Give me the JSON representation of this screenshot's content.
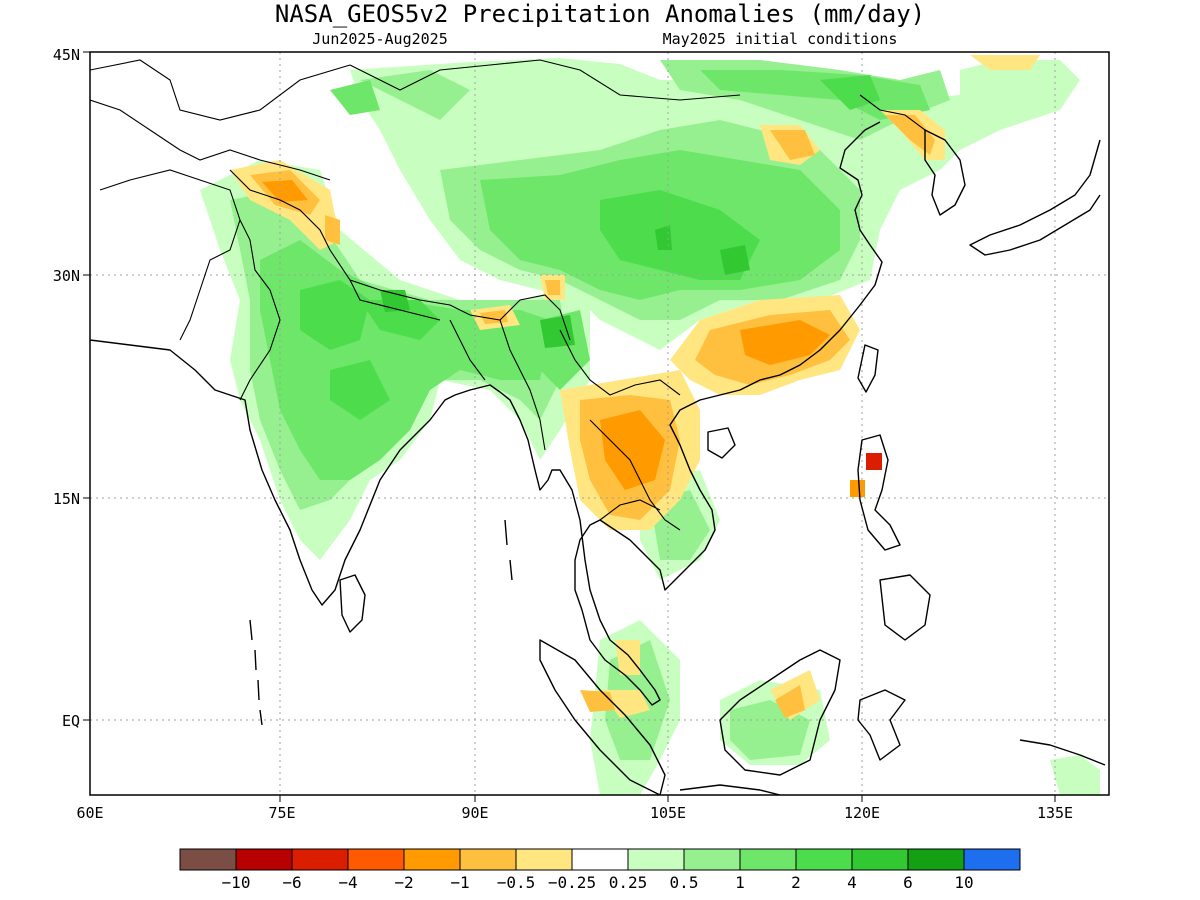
{
  "title": "NASA_GEOS5v2 Precipitation Anomalies (mm/day)",
  "subtitle_left": "Jun2025-Aug2025",
  "subtitle_right": "May2025 initial conditions",
  "axes": {
    "lon_ticks": [
      "60E",
      "75E",
      "90E",
      "105E",
      "120E",
      "135E"
    ],
    "lat_ticks": [
      "45N",
      "30N",
      "15N",
      "EQ"
    ]
  },
  "colorbar": {
    "colors": [
      "#7b4e45",
      "#b80000",
      "#dc1e00",
      "#ff5a00",
      "#ff9a00",
      "#ffc040",
      "#ffe680",
      "#ffffff",
      "#c8ffc0",
      "#96f090",
      "#6ee66a",
      "#4cdc4c",
      "#32c832",
      "#14a014",
      "#1e6ef0"
    ],
    "labels": [
      "-10",
      "-6",
      "-4",
      "-2",
      "-1",
      "-0.5",
      "-0.25",
      "0.25",
      "0.5",
      "1",
      "2",
      "4",
      "6",
      "10"
    ]
  }
}
